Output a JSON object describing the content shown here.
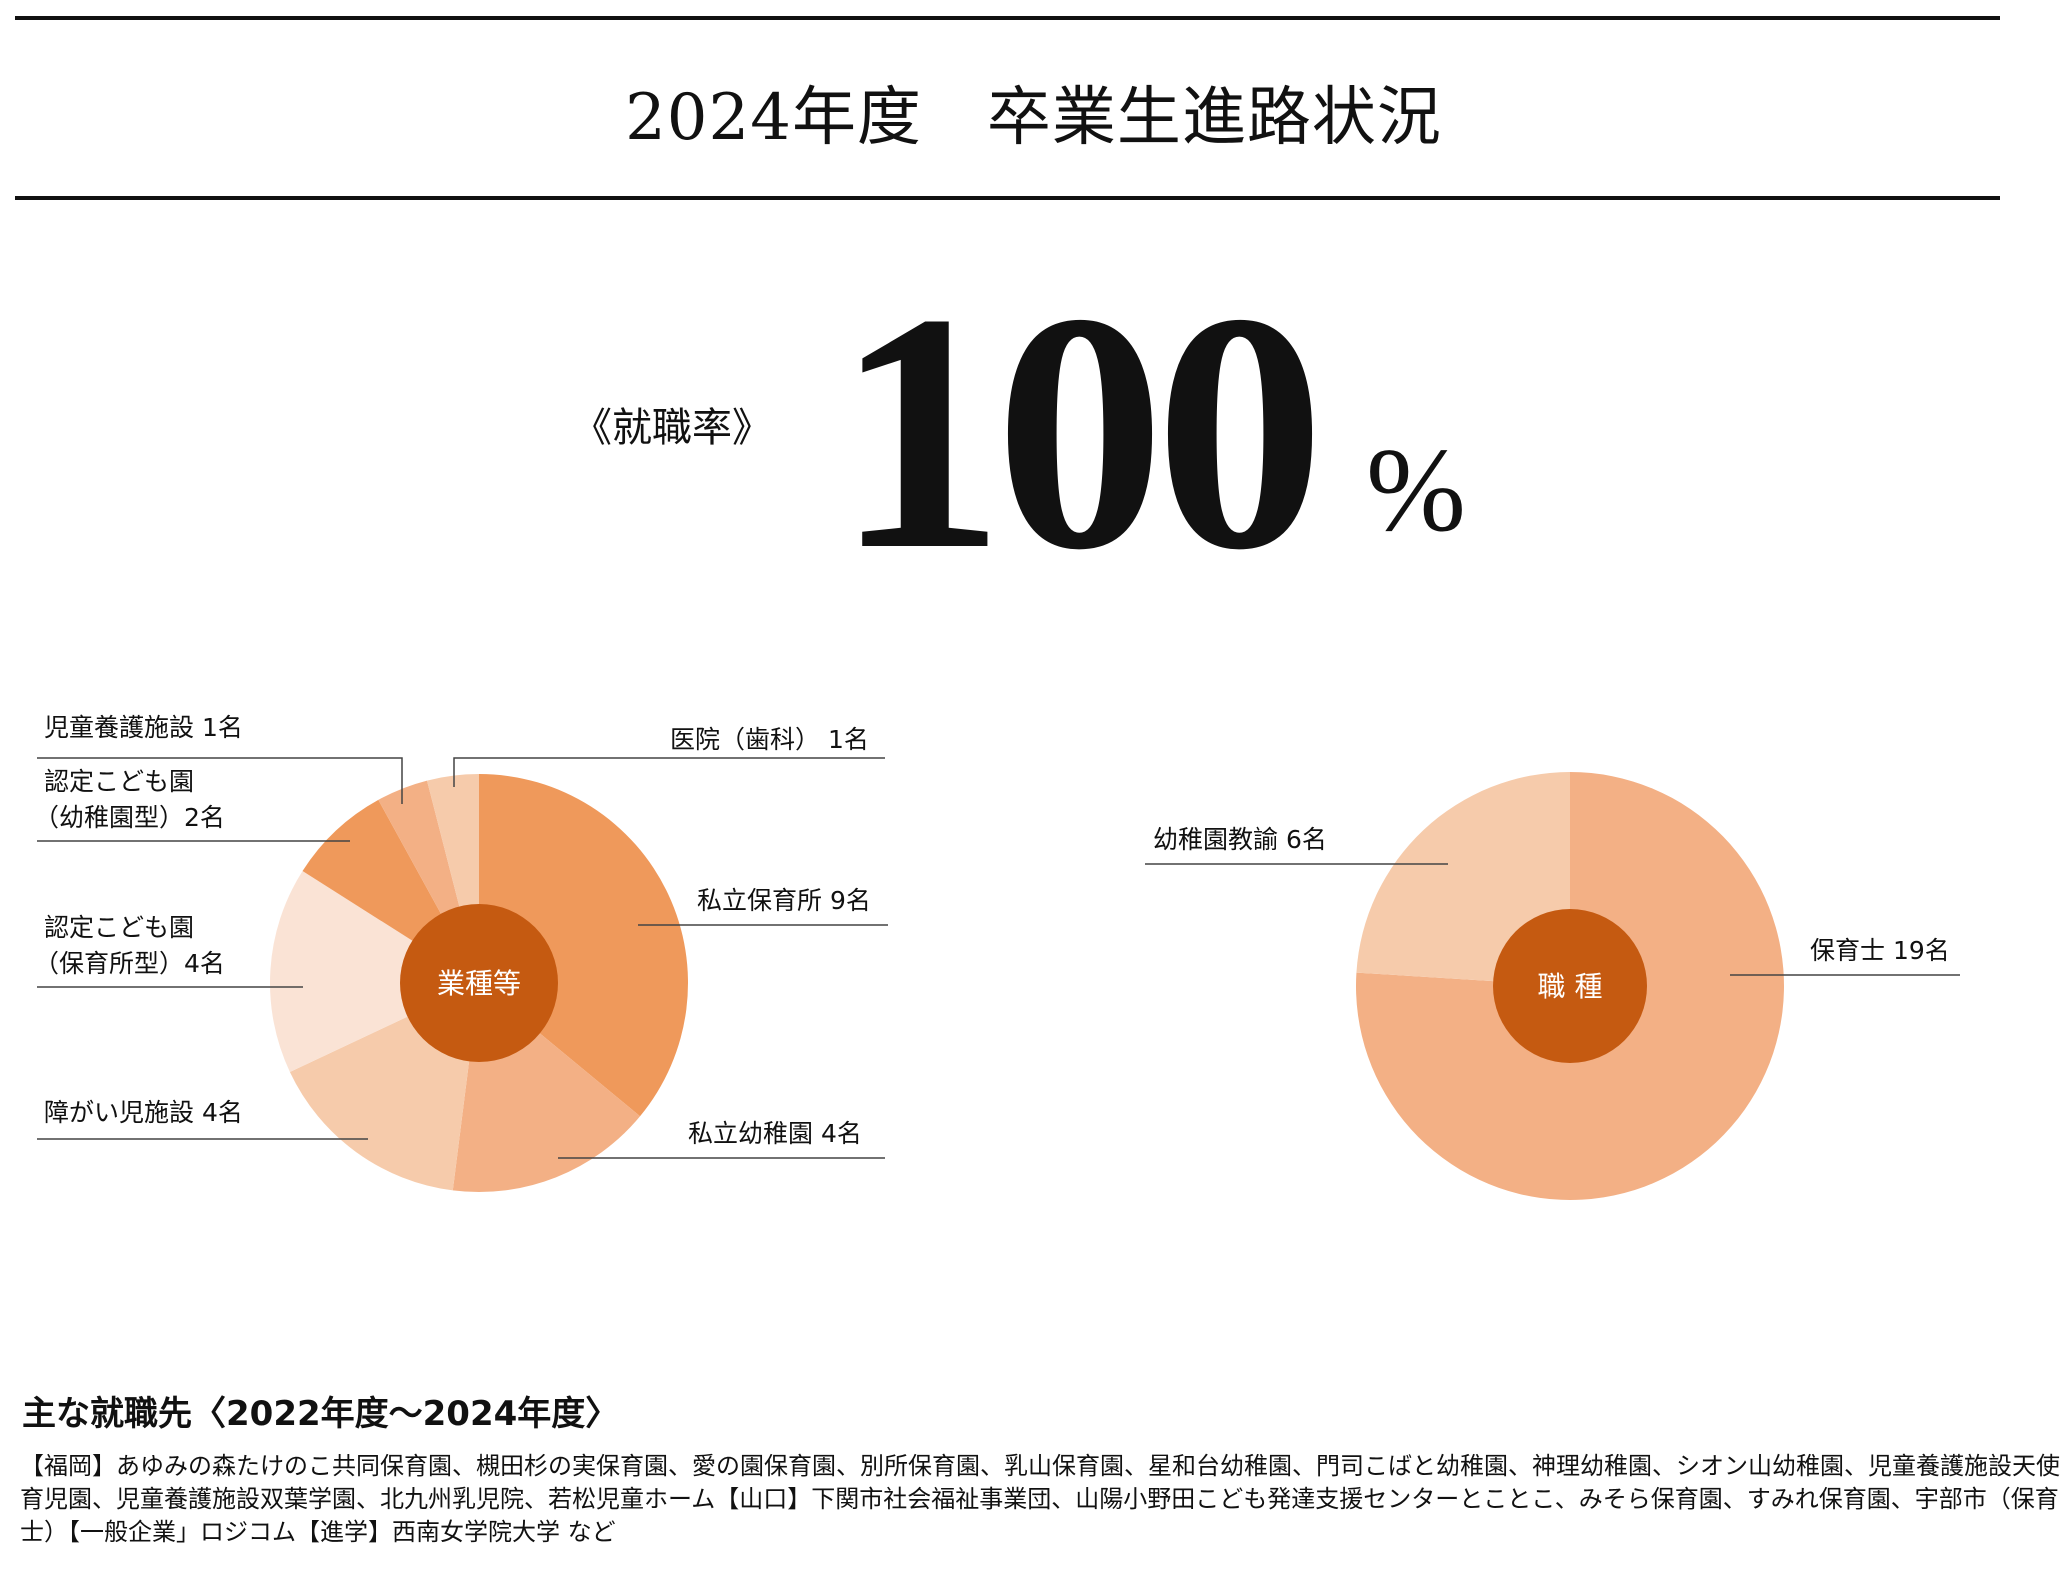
{
  "header": {
    "title": "2024年度　卒業生進路状況"
  },
  "employment_rate": {
    "label": "《就職率》",
    "value": "100",
    "unit": "%"
  },
  "chart_data": [
    {
      "type": "pie",
      "center_label": "業種等",
      "slices": [
        {
          "label": "私立保育所 9名",
          "value": 9,
          "color": "#EF995B"
        },
        {
          "label": "私立幼稚園 4名",
          "value": 4,
          "color": "#F3B085"
        },
        {
          "label": "障がい児施設 4名",
          "value": 4,
          "color": "#F6CBAB"
        },
        {
          "label_lines": [
            "認定こども園",
            "（保育所型）4名"
          ],
          "value": 4,
          "color": "#FAE3D5"
        },
        {
          "label_lines": [
            "認定こども園",
            "（幼稚園型）2名"
          ],
          "value": 2,
          "color": "#EF995B"
        },
        {
          "label": "児童養護施設 1名",
          "value": 1,
          "color": "#F3B085"
        },
        {
          "label": "医院（歯科） 1名",
          "value": 1,
          "color": "#F6CBAB"
        }
      ],
      "center_color": "#C55A11"
    },
    {
      "type": "pie",
      "center_label": "職 種",
      "slices": [
        {
          "label": "保育士 19名",
          "value": 19,
          "color": "#F3B085"
        },
        {
          "label": "幼稚園教諭 6名",
          "value": 6,
          "color": "#F6CBAB"
        }
      ],
      "center_color": "#C55A11"
    }
  ],
  "employers": {
    "heading": "主な就職先〈2022年度～2024年度〉",
    "body": "【福岡】あゆみの森たけのこ共同保育園、槻田杉の実保育園、愛の園保育園、別所保育園、乳山保育園、星和台幼稚園、門司こばと幼稚園、神理幼稚園、シオン山幼稚園、児童養護施設天使育児園、児童養護施設双葉学園、北九州乳児院、若松児童ホーム【山口】下関市社会福祉事業団、山陽小野田こども発達支援センターとことこ、みそら保育園、すみれ保育園、宇部市（保育士）【一般企業」ロジコム【進学】西南女学院大学 など"
  }
}
